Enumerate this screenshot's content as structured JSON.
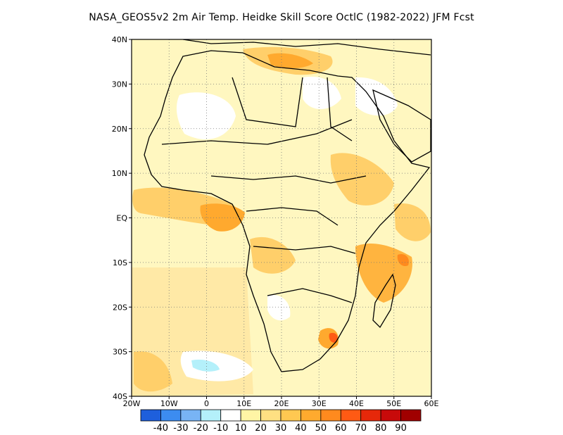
{
  "title": "NASA_GEOS5v2  2m Air Temp. Heidke Skill Score OctlC (1982-2022) JFM Fcst",
  "map": {
    "lon_range": [
      -20,
      60
    ],
    "lat_range": [
      -40,
      40
    ],
    "lon_ticks": [
      "20W",
      "10W",
      "0",
      "10E",
      "20E",
      "30E",
      "40E",
      "50E",
      "60E"
    ],
    "lat_ticks": [
      "40N",
      "30N",
      "20N",
      "10N",
      "EQ",
      "10S",
      "20S",
      "30S",
      "40S"
    ],
    "grid": "dotted"
  },
  "colorbar": {
    "colors": [
      "#1e5fdc",
      "#3c8cf0",
      "#78b4f5",
      "#b4f0fa",
      "#ffffff",
      "#fff5a5",
      "#ffe082",
      "#ffc851",
      "#ffaa2e",
      "#ff8a1e",
      "#ff5a14",
      "#e6280a",
      "#c80a0a",
      "#a00000"
    ],
    "labels": [
      "-40",
      "-30",
      "-20",
      "-10",
      "10",
      "20",
      "30",
      "40",
      "50",
      "60",
      "70",
      "80",
      "90"
    ]
  }
}
